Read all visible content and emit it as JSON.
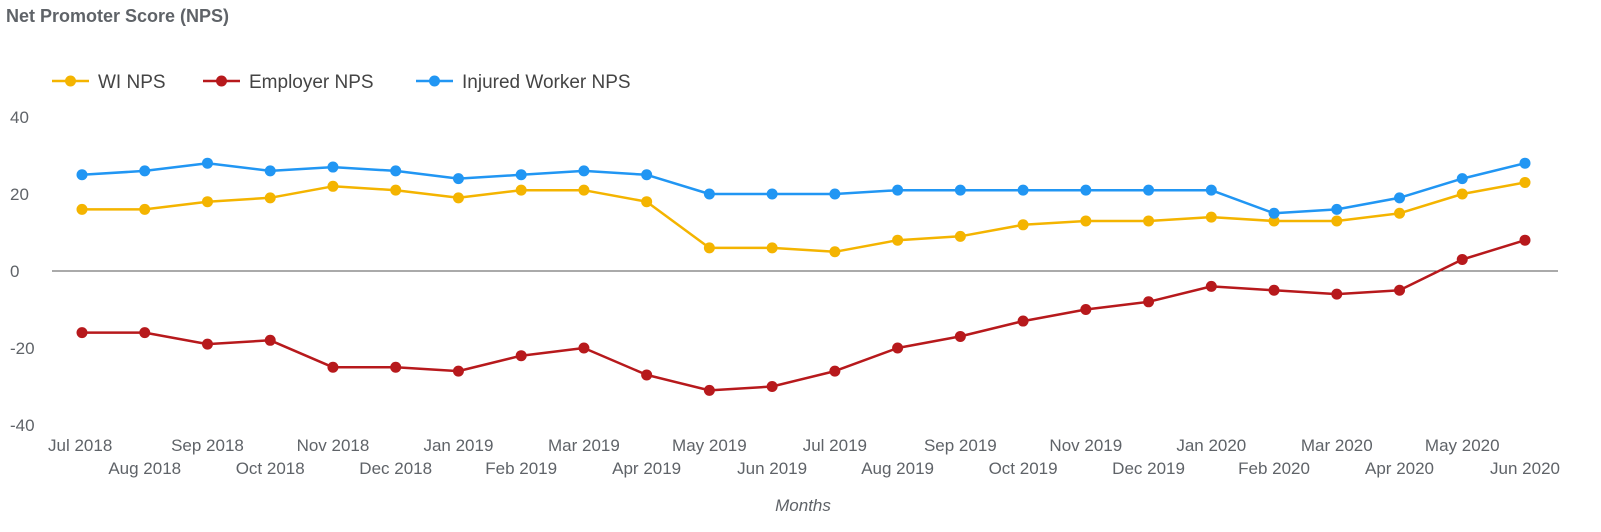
{
  "chart_data": {
    "type": "line",
    "title": "Net Promoter Score (NPS)",
    "xlabel": "Months",
    "ylabel": "",
    "ylim": [
      -40,
      40
    ],
    "yticks": [
      -40,
      -20,
      0,
      20,
      40
    ],
    "grid": false,
    "legend_position": "top-left",
    "categories": [
      "Jul 2018",
      "Aug 2018",
      "Sep 2018",
      "Oct 2018",
      "Nov 2018",
      "Dec 2018",
      "Jan 2019",
      "Feb 2019",
      "Mar 2019",
      "Apr 2019",
      "May 2019",
      "Jun 2019",
      "Jul 2019",
      "Aug 2019",
      "Sep 2019",
      "Oct 2019",
      "Nov 2019",
      "Dec 2019",
      "Jan 2020",
      "Feb 2020",
      "Mar 2020",
      "Apr 2020",
      "May 2020",
      "Jun 2020"
    ],
    "series": [
      {
        "name": "WI NPS",
        "color": "#f4b400",
        "values": [
          16,
          16,
          18,
          19,
          22,
          21,
          19,
          21,
          21,
          18,
          6,
          6,
          5,
          8,
          9,
          12,
          13,
          13,
          14,
          13,
          13,
          15,
          20,
          23
        ]
      },
      {
        "name": "Employer NPS",
        "color": "#b7191c",
        "values": [
          -16,
          -16,
          -19,
          -18,
          -25,
          -25,
          -26,
          -22,
          -20,
          -27,
          -31,
          -30,
          -26,
          -20,
          -17,
          -13,
          -10,
          -8,
          -4,
          -5,
          -6,
          -5,
          3,
          8
        ]
      },
      {
        "name": "Injured Worker NPS",
        "color": "#2196f3",
        "values": [
          25,
          26,
          28,
          26,
          27,
          26,
          24,
          25,
          26,
          25,
          20,
          20,
          20,
          21,
          21,
          21,
          21,
          21,
          21,
          15,
          16,
          19,
          24,
          28
        ]
      }
    ]
  }
}
